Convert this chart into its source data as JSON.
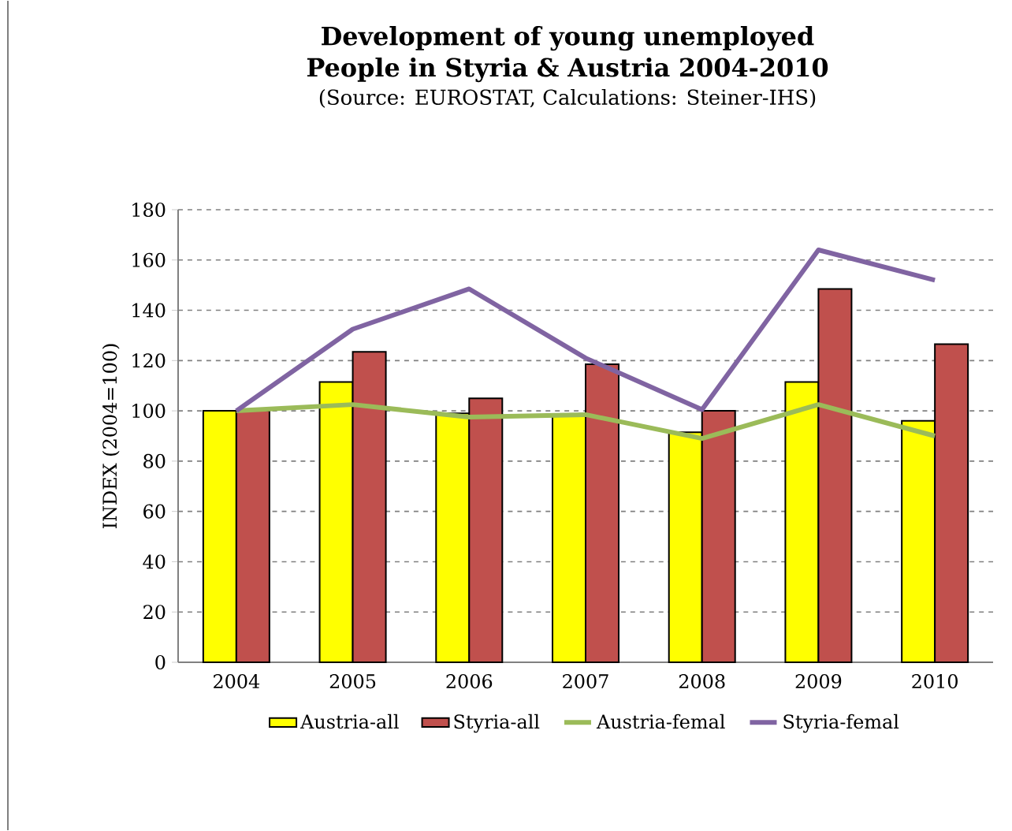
{
  "chart_data": {
    "type": "bar",
    "title": "Development of young unemployed People in Styria & Austria 2004-2010",
    "subtitle": "(Source: EUROSTAT, Calculations: Steiner-IHS)",
    "ylabel": "INDEX (2004=100)",
    "categories": [
      "2004",
      "2005",
      "2006",
      "2007",
      "2008",
      "2009",
      "2010"
    ],
    "series": [
      {
        "name": "Austria-all",
        "color": "#ffff00",
        "values": [
          100,
          111.5,
          99,
          98,
          91.5,
          111.5,
          96
        ]
      },
      {
        "name": "Styria-all",
        "color": "#c0504d",
        "values": [
          100,
          123.5,
          105,
          118.5,
          100,
          148.5,
          126.5
        ]
      },
      {
        "name": "Austria-femal",
        "type": "line",
        "color": "#9bbb59",
        "values": [
          100,
          102.5,
          97.5,
          98.5,
          89,
          102.5,
          90
        ]
      },
      {
        "name": "Styria-femal",
        "type": "line",
        "color": "#8064a2",
        "values": [
          100,
          132.5,
          148.5,
          121,
          100.5,
          164,
          152
        ]
      }
    ],
    "ylim": [
      0,
      180
    ],
    "yticks": [
      0,
      20,
      40,
      60,
      80,
      100,
      120,
      140,
      160,
      180
    ],
    "grid": "y",
    "legend": "bottom",
    "marker": "none",
    "line_style": "solid"
  }
}
